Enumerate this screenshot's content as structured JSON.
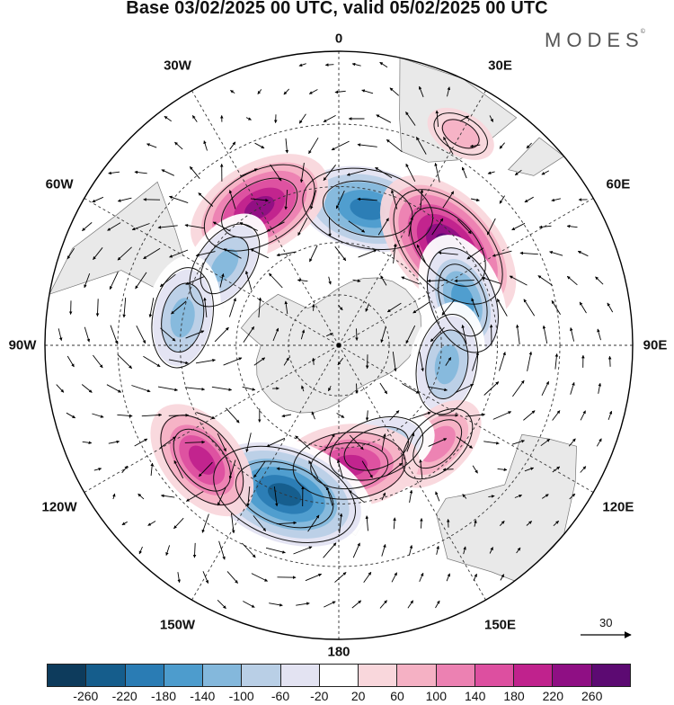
{
  "title": "Base 03/02/2025 00 UTC, valid 05/02/2025 00 UTC",
  "brand": "MODES",
  "brand_mark": "©",
  "longitude_labels": [
    "0",
    "30E",
    "60E",
    "90E",
    "120E",
    "150E",
    "180",
    "150W",
    "120W",
    "90W",
    "60W",
    "30W"
  ],
  "scale_vector_label": "30",
  "colorbar": {
    "colors": [
      "#0d3b5c",
      "#155d8c",
      "#2a7cb4",
      "#4d9ccd",
      "#84b8dc",
      "#b9cfe6",
      "#e3e3f2",
      "#ffffff",
      "#f9d7dc",
      "#f5b1c4",
      "#ec81b2",
      "#dd4fa0",
      "#c0228d",
      "#8f0f84",
      "#5c0a72"
    ],
    "tick_labels": [
      "-260",
      "-220",
      "-180",
      "-140",
      "-100",
      "-60",
      "-20",
      "20",
      "60",
      "100",
      "140",
      "180",
      "220",
      "260"
    ]
  },
  "anomaly_centers": [
    {
      "lon": 12,
      "lat": -50,
      "value": -230
    },
    {
      "lon": 48,
      "lat": -48,
      "value": 240
    },
    {
      "lon": 70,
      "lat": -52,
      "value": -170
    },
    {
      "lon": 100,
      "lat": -58,
      "value": -150
    },
    {
      "lon": 135,
      "lat": -50,
      "value": 110
    },
    {
      "lon": 160,
      "lat": -58,
      "value": -140
    },
    {
      "lon": 175,
      "lat": -55,
      "value": 180
    },
    {
      "lon": -160,
      "lat": -45,
      "value": -270
    },
    {
      "lon": -130,
      "lat": -40,
      "value": 160
    },
    {
      "lon": -30,
      "lat": -45,
      "value": 200
    },
    {
      "lon": -55,
      "lat": -50,
      "value": -130
    },
    {
      "lon": -80,
      "lat": -45,
      "value": -150
    },
    {
      "lon": 30,
      "lat": -25,
      "value": 40
    }
  ]
}
